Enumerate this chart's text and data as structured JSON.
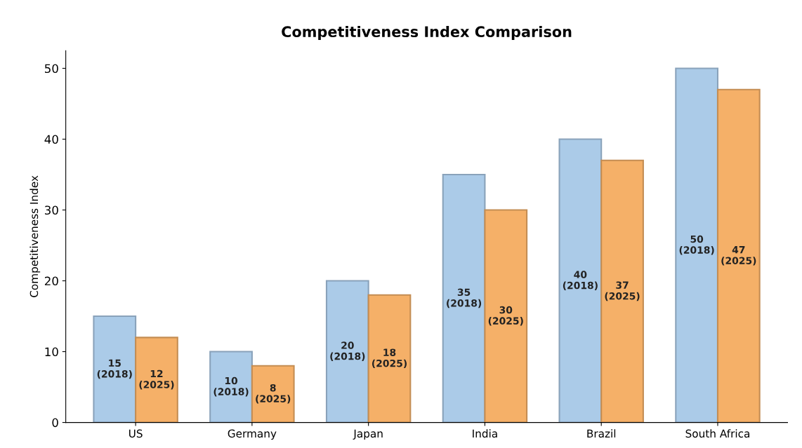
{
  "chart_data": {
    "type": "bar",
    "title": "Competitiveness Index Comparison",
    "ylabel": "Competitiveness Index",
    "categories": [
      "US",
      "Germany",
      "Japan",
      "India",
      "Brazil",
      "South Africa"
    ],
    "series": [
      {
        "color": "#abcbe8",
        "values": [
          15,
          10,
          20,
          35,
          40,
          50
        ],
        "value_labels": [
          "15\n(2018)",
          "10\n(2018)",
          "20\n(2018)",
          "35\n(2018)",
          "40\n(2018)",
          "50\n(2018)"
        ]
      },
      {
        "color": "#f5b068",
        "values": [
          12,
          8,
          18,
          30,
          37,
          47
        ],
        "value_labels": [
          "12\n(2025)",
          "8\n(2025)",
          "18\n(2025)",
          "30\n(2025)",
          "37\n(2025)",
          "47\n(2025)"
        ]
      }
    ],
    "ylim": [
      0,
      52.5
    ],
    "yticks": [
      0,
      10,
      20,
      30,
      40,
      50
    ],
    "grid": false
  }
}
